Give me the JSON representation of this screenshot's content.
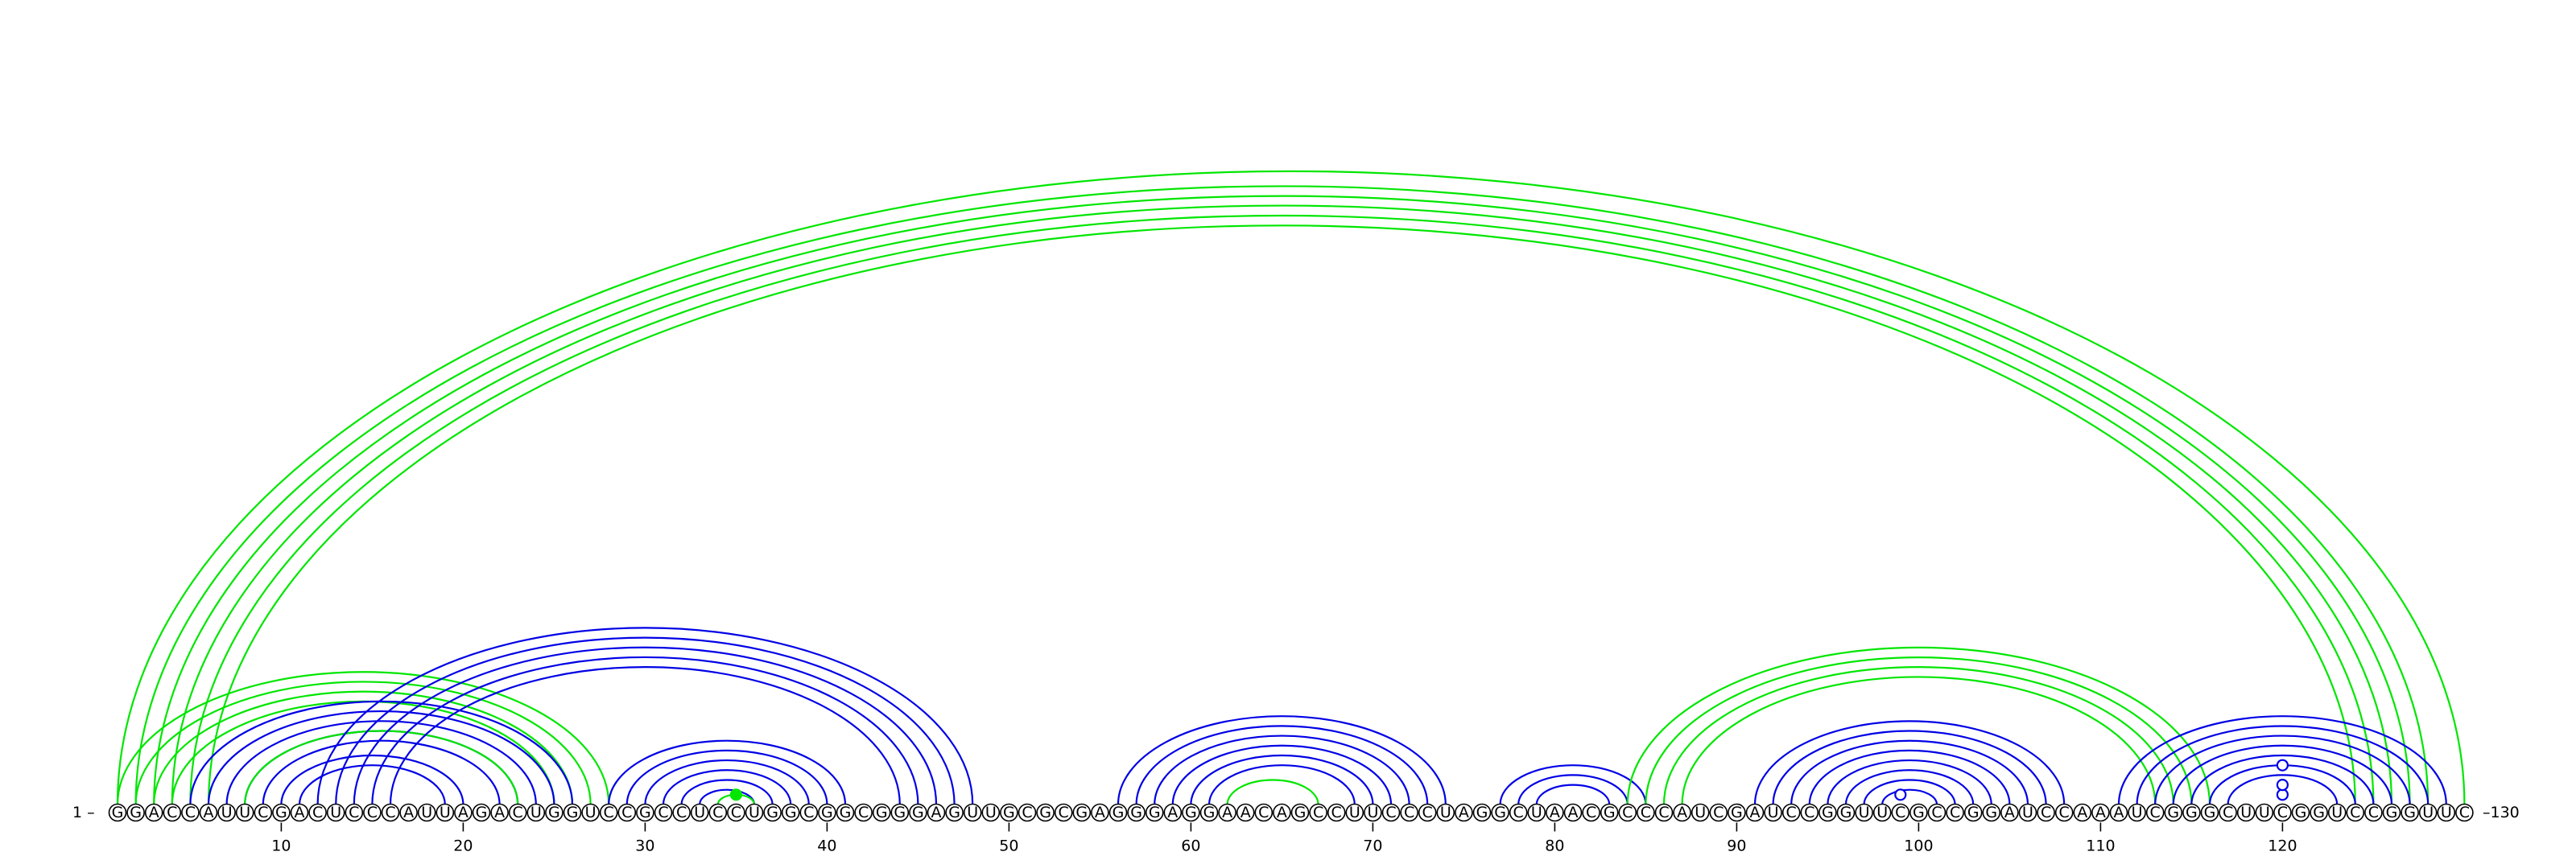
{
  "sequence": "GGACCAUUCGACUCCCAUUAGACUGGUCCGCCUCCUGGCGGCGGGAGUUGCGCGAGGGAGGAACAGCCUUCCCUAGGCUAACGCCCAUCGAUCCGGUUCGCCGGAUCCAAAUCGGGCUUCGGUCCGGUUC",
  "start_label": "1 –",
  "end_label": "–130",
  "ticks": [
    "10",
    "20",
    "30",
    "40",
    "50",
    "60",
    "70",
    "80",
    "90",
    "100",
    "110",
    "120"
  ],
  "colors": {
    "primary": "#0000e6",
    "secondary": "#00e600"
  },
  "helices": [
    {
      "color": "secondary",
      "start": 1,
      "end": 130,
      "length": 1
    },
    {
      "color": "secondary",
      "start": 2,
      "end": 128,
      "length": 5
    },
    {
      "color": "secondary",
      "start": 1,
      "end": 28,
      "length": 4
    },
    {
      "color": "primary",
      "start": 5,
      "end": 26,
      "length": 5
    },
    {
      "color": "secondary",
      "start": 8,
      "end": 23,
      "length": 1
    },
    {
      "color": "primary",
      "start": 10,
      "end": 20,
      "length": 2
    },
    {
      "color": "primary",
      "start": 12,
      "end": 48,
      "length": 5
    },
    {
      "color": "primary",
      "start": 28,
      "end": 41,
      "length": 6
    },
    {
      "color": "secondary",
      "start": 34,
      "end": 36,
      "length": 1
    },
    {
      "color": "primary",
      "start": 56,
      "end": 74,
      "length": 6
    },
    {
      "color": "secondary",
      "start": 62,
      "end": 67,
      "length": 1
    },
    {
      "color": "primary",
      "start": 77,
      "end": 85,
      "length": 3
    },
    {
      "color": "secondary",
      "start": 84,
      "end": 116,
      "length": 4
    },
    {
      "color": "primary",
      "start": 91,
      "end": 108,
      "length": 8
    },
    {
      "color": "primary",
      "start": 111,
      "end": 129,
      "length": 7
    }
  ],
  "pair_markers": [
    {
      "color": "secondary",
      "i": 34,
      "j": 36,
      "open": false
    },
    {
      "color": "primary",
      "i": 98,
      "j": 100,
      "open": true
    },
    {
      "color": "primary",
      "i": 119,
      "j": 121,
      "open": true
    },
    {
      "color": "primary",
      "i": 118,
      "j": 122,
      "open": true
    },
    {
      "color": "primary",
      "i": 116,
      "j": 124,
      "open": true
    }
  ]
}
